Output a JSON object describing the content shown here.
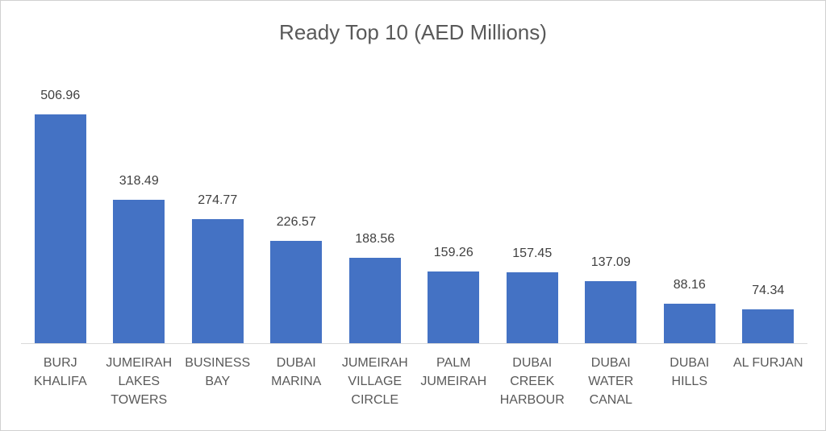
{
  "chart_data": {
    "type": "bar",
    "title": "Ready Top 10 (AED Millions)",
    "categories": [
      "BURJ KHALIFA",
      "JUMEIRAH LAKES TOWERS",
      "BUSINESS BAY",
      "DUBAI MARINA",
      "JUMEIRAH VILLAGE CIRCLE",
      "PALM JUMEIRAH",
      "DUBAI CREEK HARBOUR",
      "DUBAI WATER CANAL",
      "DUBAI HILLS",
      "AL FURJAN"
    ],
    "values": [
      506.96,
      318.49,
      274.77,
      226.57,
      188.56,
      159.26,
      157.45,
      137.09,
      88.16,
      74.34
    ],
    "color": "#4472c4"
  }
}
